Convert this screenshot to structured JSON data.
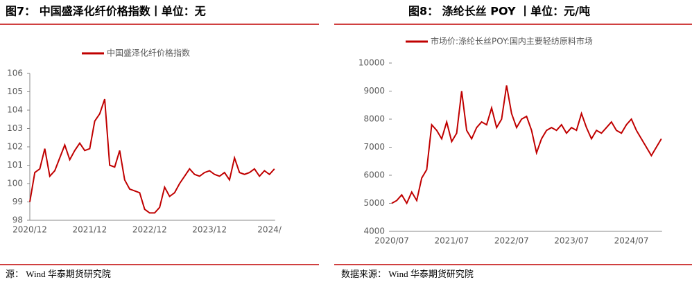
{
  "chart_data": [
    {
      "type": "line",
      "title": "图7：  中国盛泽化纤价格指数丨单位：无",
      "source": "源：  Wind  华泰期货研究院",
      "categories": [
        "2020/12",
        null,
        null,
        null,
        null,
        null,
        null,
        null,
        null,
        null,
        null,
        null,
        "2021/12",
        null,
        null,
        null,
        null,
        null,
        null,
        null,
        null,
        null,
        null,
        null,
        "2022/12",
        null,
        null,
        null,
        null,
        null,
        null,
        null,
        null,
        null,
        null,
        null,
        "2023/12",
        null,
        null,
        null,
        null,
        null,
        null,
        null,
        null,
        null,
        null,
        null,
        "2024/",
        null
      ],
      "series": [
        {
          "name": "中国盛泽化纤价格指数",
          "color": "#c00000",
          "values": [
            99,
            100.6,
            100.8,
            101.9,
            100.4,
            100.7,
            101.4,
            102.1,
            101.3,
            101.8,
            102.2,
            101.8,
            101.9,
            103.4,
            103.8,
            104.6,
            101.0,
            100.9,
            101.8,
            100.2,
            99.7,
            99.6,
            99.5,
            98.6,
            98.4,
            98.4,
            98.7,
            99.8,
            99.3,
            99.5,
            100.0,
            100.4,
            100.8,
            100.5,
            100.4,
            100.6,
            100.7,
            100.5,
            100.4,
            100.6,
            100.2,
            101.4,
            100.6,
            100.5,
            100.6,
            100.8,
            100.4,
            100.7,
            100.5,
            100.8
          ]
        }
      ],
      "ylim": [
        98,
        106
      ],
      "yticks": [
        98,
        99,
        100,
        101,
        102,
        103,
        104,
        105,
        106
      ]
    },
    {
      "type": "line",
      "title": "图8：   涤纶长丝 POY 丨单位：元/吨",
      "source": "数据来源：  Wind  华泰期货研究院",
      "categories": [
        "2020/07",
        null,
        null,
        null,
        null,
        null,
        null,
        null,
        null,
        null,
        null,
        null,
        "2021/07",
        null,
        null,
        null,
        null,
        null,
        null,
        null,
        null,
        null,
        null,
        null,
        "2022/07",
        null,
        null,
        null,
        null,
        null,
        null,
        null,
        null,
        null,
        null,
        null,
        "2023/07",
        null,
        null,
        null,
        null,
        null,
        null,
        null,
        null,
        null,
        null,
        null,
        "2024/07",
        null,
        null,
        null,
        null,
        null,
        null
      ],
      "series": [
        {
          "name": "市场价:涤纶长丝POY:国内主要轻纺原料市场",
          "color": "#c00000",
          "values": [
            5000,
            5100,
            5300,
            5000,
            5400,
            5100,
            5900,
            6200,
            7800,
            7600,
            7300,
            7900,
            7200,
            7500,
            9000,
            7600,
            7300,
            7700,
            7900,
            7800,
            8400,
            7700,
            8000,
            9200,
            8200,
            7700,
            8000,
            8100,
            7600,
            6800,
            7300,
            7600,
            7700,
            7600,
            7800,
            7500,
            7700,
            7600,
            8200,
            7700,
            7300,
            7600,
            7500,
            7700,
            7900,
            7600,
            7500,
            7800,
            8000,
            7600,
            7300,
            7000,
            6700,
            7000,
            7300
          ]
        }
      ],
      "ylim": [
        4000,
        10000
      ],
      "yticks": [
        4000,
        5000,
        6000,
        7000,
        8000,
        9000,
        10000
      ]
    }
  ]
}
